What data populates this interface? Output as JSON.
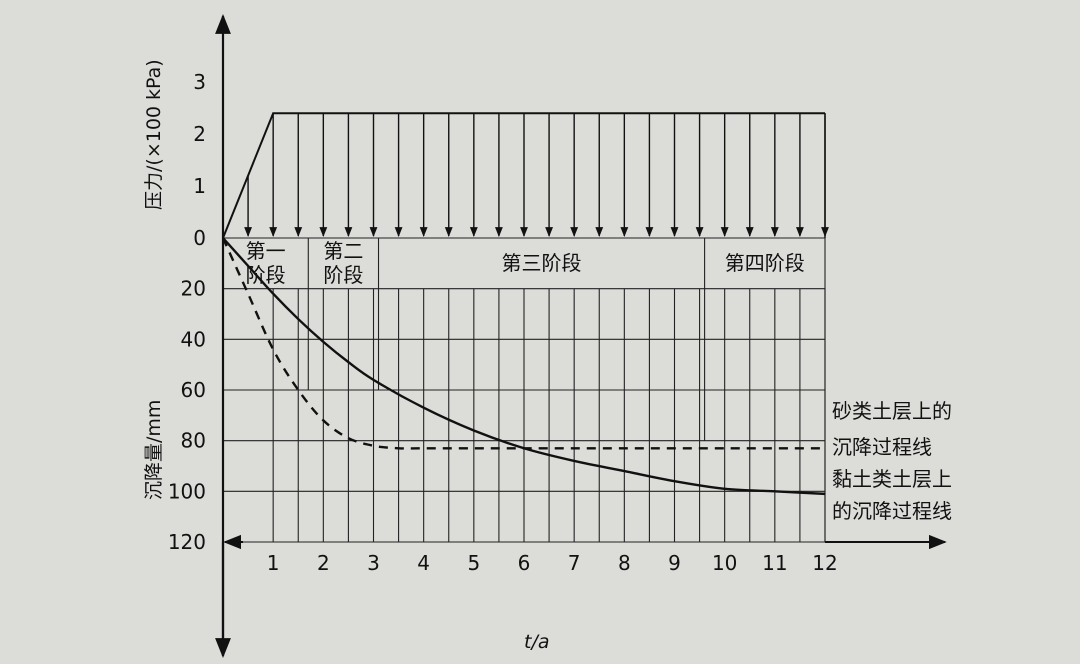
{
  "chart_data": {
    "type": "line",
    "xlabel": "t/a",
    "ylabel_top": "压力/(×100 kPa)",
    "ylabel_bottom": "沉降量/mm",
    "x_ticks": [
      "1",
      "2",
      "3",
      "4",
      "5",
      "6",
      "7",
      "8",
      "9",
      "10",
      "11",
      "12"
    ],
    "top_ticks": [
      "3",
      "2",
      "1",
      "0"
    ],
    "bottom_ticks": [
      "20",
      "40",
      "60",
      "80",
      "100",
      "120"
    ],
    "xlim": [
      0,
      12
    ],
    "pressure_ylim": [
      0,
      3
    ],
    "settlement_ylim": [
      0,
      120
    ],
    "pressure_load": {
      "x": [
        0,
        1,
        12
      ],
      "values": [
        0,
        2.4,
        2.4
      ]
    },
    "stages": [
      {
        "label_lines": [
          "第一",
          "阶段"
        ],
        "x_end": 1.7
      },
      {
        "label_lines": [
          "第二",
          "阶段"
        ],
        "x_end": 3.1
      },
      {
        "label_lines": [
          "第三阶段"
        ],
        "x_end": 9.6
      },
      {
        "label_lines": [
          "第四阶段"
        ],
        "x_end": 12
      }
    ],
    "series": [
      {
        "name_lines": [
          "砂类土层上的",
          "沉降过程线"
        ],
        "style": "dashed",
        "x": [
          0,
          0.5,
          1,
          1.5,
          2,
          2.5,
          3,
          3.5,
          4,
          5,
          6,
          8,
          10,
          12
        ],
        "values": [
          0,
          22,
          44,
          60,
          72,
          79,
          82,
          83,
          83,
          83,
          83,
          83,
          83,
          83
        ]
      },
      {
        "name_lines": [
          "黏土类土层上",
          "的沉降过程线"
        ],
        "style": "solid",
        "x": [
          0,
          0.5,
          1,
          1.5,
          2,
          2.5,
          3,
          4,
          5,
          6,
          7,
          8,
          9,
          10,
          11,
          12
        ],
        "values": [
          0,
          11,
          22,
          32,
          41,
          49,
          56,
          67,
          76,
          83,
          88,
          92,
          96,
          99,
          100,
          101
        ]
      }
    ],
    "grid": true
  }
}
